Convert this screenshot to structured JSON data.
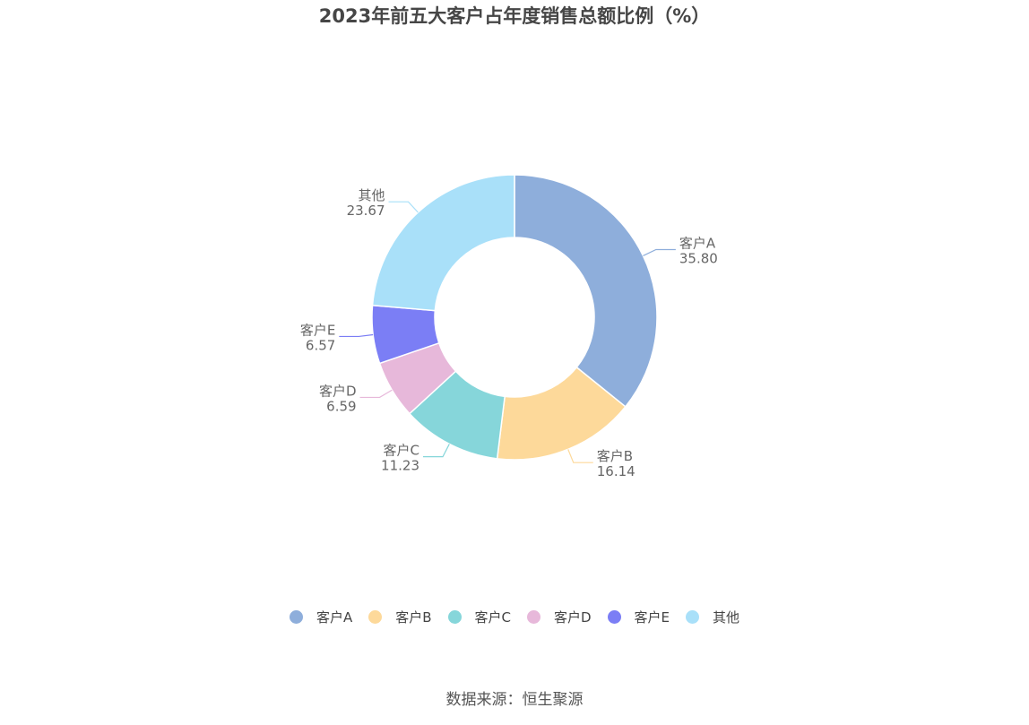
{
  "title": "2023年前五大客户占年度销售总额比例（%）",
  "source": "数据来源：恒生聚源",
  "chart_data": {
    "type": "pie",
    "title": "2023年前五大客户占年度销售总额比例（%）",
    "donut": true,
    "legend_position": "bottom",
    "series": [
      {
        "name": "客户A",
        "value": 35.8,
        "label": "35.80",
        "color": "#8eaedb"
      },
      {
        "name": "客户B",
        "value": 16.14,
        "label": "16.14",
        "color": "#fdd99a"
      },
      {
        "name": "客户C",
        "value": 11.23,
        "label": "11.23",
        "color": "#86d6da"
      },
      {
        "name": "客户D",
        "value": 6.59,
        "label": "6.59",
        "color": "#e7b8da"
      },
      {
        "name": "客户E",
        "value": 6.57,
        "label": "6.57",
        "color": "#7b7ef5"
      },
      {
        "name": "其他",
        "value": 23.67,
        "label": "23.67",
        "color": "#a9e0f9"
      }
    ]
  }
}
